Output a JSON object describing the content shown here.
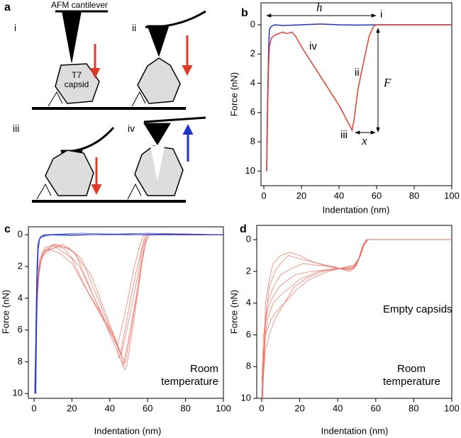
{
  "diagram": {
    "panel_label": "a",
    "cantilever_label": "AFM cantilever",
    "capsid_label": "T7 capsid",
    "steps": [
      "i",
      "ii",
      "iii",
      "iv"
    ]
  },
  "chart_data": [
    {
      "type": "line",
      "panel_label": "b",
      "xlabel": "Indentation (nm)",
      "ylabel": "Force (nN)",
      "xlim": [
        -1.5,
        100
      ],
      "ylim": [
        11,
        -1.5
      ],
      "xticks": [
        0,
        20,
        40,
        60,
        80,
        100
      ],
      "yticks": [
        0,
        2,
        4,
        6,
        8,
        10
      ],
      "annotations": [
        "h",
        "i",
        "ii",
        "iii",
        "iv",
        "F",
        "x"
      ],
      "series": [
        {
          "color": "#2233cc",
          "x": [
            1.5,
            1.8,
            2.2,
            2.6,
            3,
            4,
            6,
            10,
            20,
            30,
            40,
            50,
            60,
            70,
            80,
            90,
            100
          ],
          "values": [
            10,
            7,
            4,
            1.5,
            0.3,
            0.1,
            0,
            0.05,
            0,
            -0.05,
            0,
            0.02,
            0,
            0,
            0,
            0,
            0
          ]
        },
        {
          "color": "#e0402f",
          "x": [
            1.5,
            2,
            2.5,
            3,
            4,
            6,
            8,
            10,
            12,
            15,
            17,
            20,
            30,
            40,
            47,
            48,
            50,
            52,
            54,
            56,
            58,
            59,
            60,
            70,
            80,
            90,
            100
          ],
          "values": [
            10,
            6,
            3,
            1.5,
            0.9,
            0.7,
            0.6,
            0.5,
            0.6,
            0.5,
            0.8,
            1.5,
            3.5,
            5.5,
            7.2,
            6.5,
            4.5,
            3.2,
            2.0,
            0.8,
            0.2,
            0.05,
            0,
            0,
            0,
            0,
            0
          ]
        }
      ]
    },
    {
      "type": "line",
      "panel_label": "c",
      "xlabel": "Indentation (nm)",
      "ylabel": "Force (nN)",
      "xlim": [
        -3,
        100
      ],
      "ylim": [
        10.3,
        -0.5
      ],
      "xticks": [
        0,
        20,
        40,
        60,
        80,
        100
      ],
      "yticks": [
        0,
        2,
        4,
        6,
        8,
        10
      ],
      "annotations": [
        "Room temperature"
      ],
      "series": [
        {
          "color": "#ee6a5c",
          "x": [
            0.5,
            1.5,
            3,
            6,
            12,
            20,
            30,
            46,
            47,
            50,
            53,
            56,
            58,
            60,
            100
          ],
          "values": [
            10,
            4,
            1.5,
            0.8,
            0.6,
            1,
            2.5,
            7.5,
            8.3,
            6.5,
            4.5,
            2.5,
            1,
            0,
            0
          ]
        },
        {
          "color": "#ee6a5c",
          "x": [
            0.5,
            1.2,
            2.5,
            5,
            10,
            18,
            25,
            44,
            45,
            48,
            51,
            54,
            57,
            59,
            100
          ],
          "values": [
            10,
            5,
            2,
            1,
            0.7,
            0.8,
            1.5,
            7,
            7.8,
            6,
            4,
            2.3,
            0.8,
            0,
            0
          ]
        },
        {
          "color": "#ee6a5c",
          "x": [
            0.4,
            1,
            2,
            4,
            9,
            15,
            22,
            48,
            49,
            52,
            55,
            57,
            59,
            61,
            100
          ],
          "values": [
            9.8,
            6,
            3,
            1.4,
            0.9,
            0.6,
            1.2,
            8.5,
            8.2,
            6,
            3.5,
            1.8,
            0.5,
            0,
            0
          ]
        },
        {
          "color": "#ee6a5c",
          "x": [
            0.6,
            1.5,
            3,
            6,
            12,
            20,
            28,
            43,
            44,
            47,
            50,
            53,
            56,
            58,
            100
          ],
          "values": [
            10,
            4.5,
            1.8,
            1,
            0.8,
            1.5,
            3.5,
            6.5,
            7,
            5.5,
            3.8,
            2,
            0.6,
            0,
            0
          ]
        },
        {
          "color": "#ee6a5c",
          "x": [
            0.5,
            1.3,
            2.8,
            5,
            10,
            16,
            24,
            47,
            48,
            51,
            54,
            56,
            58,
            60,
            100
          ],
          "values": [
            10,
            5,
            2,
            1.2,
            0.6,
            0.9,
            2,
            7.8,
            8.1,
            6.2,
            4,
            2.2,
            0.7,
            0,
            0
          ]
        },
        {
          "color": "#ee6a5c",
          "x": [
            0.5,
            1,
            2.2,
            4.5,
            8,
            14,
            20,
            45,
            46,
            49,
            52,
            55,
            57,
            59,
            100
          ],
          "values": [
            10,
            7,
            2.8,
            1.1,
            0.9,
            1.2,
            1.8,
            7.2,
            7.6,
            6,
            4.2,
            2.4,
            0.9,
            0,
            0
          ]
        },
        {
          "color": "#2233cc",
          "x": [
            0.5,
            1,
            1.5,
            2,
            3,
            5,
            20,
            40,
            60,
            80,
            100
          ],
          "values": [
            10,
            6,
            2,
            0.6,
            0.2,
            0,
            0.05,
            -0.05,
            0,
            0,
            0
          ]
        },
        {
          "color": "#2233cc",
          "x": [
            0.8,
            1.3,
            1.8,
            2.5,
            3.5,
            6,
            25,
            50,
            70,
            100
          ],
          "values": [
            10,
            5,
            1.5,
            0.4,
            0.1,
            0,
            -0.1,
            0,
            -0.05,
            0
          ]
        },
        {
          "color": "#2233cc",
          "x": [
            0.3,
            0.8,
            1.3,
            2,
            3,
            8,
            30,
            60,
            100
          ],
          "values": [
            10,
            7,
            3,
            0.8,
            0.2,
            0,
            0,
            -0.1,
            0
          ]
        },
        {
          "color": "#2233cc",
          "x": [
            1,
            1.6,
            2.2,
            3,
            4,
            10,
            40,
            100
          ],
          "values": [
            10,
            4,
            1,
            0.3,
            0.1,
            0,
            0,
            0
          ]
        }
      ]
    },
    {
      "type": "line",
      "panel_label": "d",
      "xlabel": "Indentation (nm)",
      "ylabel": "Force (nN)",
      "xlim": [
        -2.6,
        100
      ],
      "ylim": [
        10,
        -0.9
      ],
      "xticks": [
        0,
        20,
        40,
        60,
        80,
        100
      ],
      "yticks": [
        0,
        2,
        4,
        6,
        8,
        10
      ],
      "annotations": [
        "Empty capsids",
        "Room temperature"
      ],
      "series": [
        {
          "color": "#ee6a5c",
          "x": [
            0,
            1,
            3,
            6,
            10,
            15,
            20,
            30,
            40,
            48,
            50,
            52,
            54,
            56,
            100
          ],
          "values": [
            10,
            7,
            5,
            4,
            3.5,
            3,
            2.5,
            2,
            1.8,
            1.8,
            1.5,
            1,
            0.3,
            0,
            0
          ]
        },
        {
          "color": "#ee6a5c",
          "x": [
            0,
            1,
            2,
            5,
            8,
            12,
            18,
            25,
            35,
            45,
            49,
            51,
            53,
            55,
            100
          ],
          "values": [
            10,
            8,
            6,
            5,
            4.5,
            4,
            3.2,
            2.5,
            2,
            1.7,
            1.6,
            1.2,
            0.5,
            0,
            0
          ]
        },
        {
          "color": "#ee6a5c",
          "x": [
            0.5,
            2,
            4,
            7,
            10,
            14,
            20,
            30,
            40,
            47,
            50,
            52,
            54,
            56,
            100
          ],
          "values": [
            10,
            5,
            3,
            2,
            1.5,
            1,
            1.2,
            1.5,
            1.8,
            1.9,
            1.6,
            0.8,
            0.2,
            0,
            0
          ]
        },
        {
          "color": "#ee6a5c",
          "x": [
            0,
            1,
            3,
            5,
            9,
            13,
            18,
            26,
            35,
            44,
            48,
            51,
            53,
            55,
            100
          ],
          "values": [
            9,
            6,
            4.5,
            3.8,
            3,
            2.6,
            2.2,
            2,
            1.9,
            1.8,
            1.8,
            1.3,
            0.4,
            0,
            0
          ]
        },
        {
          "color": "#ee6a5c",
          "x": [
            0.3,
            1.5,
            3,
            6,
            10,
            16,
            22,
            28,
            38,
            46,
            49,
            52,
            54,
            56,
            100
          ],
          "values": [
            10,
            6,
            4,
            3,
            2.2,
            1.8,
            1.5,
            1.6,
            1.7,
            2,
            1.8,
            1,
            0.3,
            0,
            0
          ]
        },
        {
          "color": "#ee6a5c",
          "x": [
            0,
            1,
            2,
            4,
            7,
            12,
            17,
            24,
            32,
            42,
            48,
            51,
            53,
            55,
            100
          ],
          "values": [
            10,
            8.5,
            7,
            6,
            5,
            4,
            3,
            2.4,
            2,
            1.8,
            1.7,
            1.2,
            0.5,
            0,
            0
          ]
        },
        {
          "color": "#ee6a5c",
          "x": [
            0.5,
            2,
            4,
            6,
            10,
            15,
            20,
            27,
            35,
            45,
            49,
            52,
            54,
            56,
            100
          ],
          "values": [
            10,
            4,
            2.5,
            1.5,
            1,
            0.8,
            1,
            1.4,
            1.7,
            1.9,
            1.7,
            1,
            0.2,
            0,
            0
          ]
        }
      ]
    }
  ]
}
